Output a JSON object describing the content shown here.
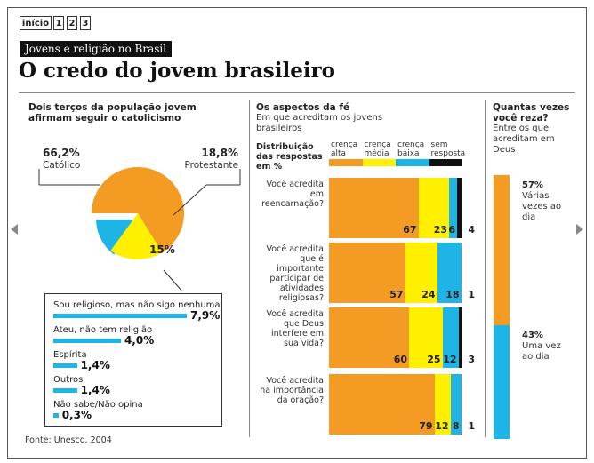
{
  "nav": {
    "home": "início",
    "pages": [
      "1",
      "2",
      "3"
    ]
  },
  "banner": "Jovens e religião no Brasil",
  "headline": "O credo do jovem brasileiro",
  "colors": {
    "alta": "#f39b23",
    "media": "#fff000",
    "baixa": "#1eb4e6",
    "sem": "#111111"
  },
  "chart_data": [
    {
      "type": "pie",
      "title": "Dois terços da população jovem afirmam seguir o catolicismo",
      "slices": [
        {
          "label": "Católico",
          "value": 66.2,
          "value_label": "66,2%",
          "color": "#f39b23"
        },
        {
          "label": "Protestante",
          "value": 18.8,
          "value_label": "18,8%",
          "color": "#fff000"
        },
        {
          "label": "",
          "value": 15,
          "value_label": "15%",
          "color": "#1eb4e6"
        }
      ],
      "breakdown": [
        {
          "label": "Sou religioso, mas não sigo nenhuma",
          "value": 7.9,
          "value_label": "7,9%"
        },
        {
          "label": "Ateu, não tem religião",
          "value": 4.0,
          "value_label": "4,0%"
        },
        {
          "label": "Espírita",
          "value": 1.4,
          "value_label": "1,4%"
        },
        {
          "label": "Outros",
          "value": 1.4,
          "value_label": "1,4%"
        },
        {
          "label": "Não sabe/Não opina",
          "value": 0.3,
          "value_label": "0,3%"
        }
      ],
      "source": "Fonte: Unesco, 2004"
    },
    {
      "type": "bar",
      "title": "Os aspectos da fé",
      "subtitle": "Em que acreditam os jovens brasileiros",
      "legend_title": "Distribuição das respostas em %",
      "legend": [
        "crença alta",
        "crença média",
        "crença baixa",
        "sem resposta"
      ],
      "categories": [
        "Você acredita em reencarnação?",
        "Você acredita que é importante participar de atividades religiosas?",
        "Você acredita que Deus interfere em sua vida?",
        "Você acredita na importância da oração?"
      ],
      "series": [
        {
          "name": "crença alta",
          "values": [
            67,
            57,
            60,
            79
          ]
        },
        {
          "name": "crença média",
          "values": [
            23,
            24,
            25,
            12
          ]
        },
        {
          "name": "crença baixa",
          "values": [
            6,
            18,
            12,
            8
          ]
        },
        {
          "name": "sem resposta",
          "values": [
            4,
            1,
            3,
            1
          ]
        }
      ],
      "stacked": true,
      "xlim": [
        0,
        100
      ]
    },
    {
      "type": "bar",
      "title": "Quantas vezes você reza?",
      "subtitle": "Entre os que acreditam em Deus",
      "segments": [
        {
          "label": "Várias vezes ao dia",
          "value": 57,
          "value_label": "57%",
          "color": "#f39b23"
        },
        {
          "label": "Uma vez ao dia",
          "value": 43,
          "value_label": "43%",
          "color": "#1eb4e6"
        }
      ],
      "stacked": true,
      "ylim": [
        0,
        100
      ]
    }
  ]
}
